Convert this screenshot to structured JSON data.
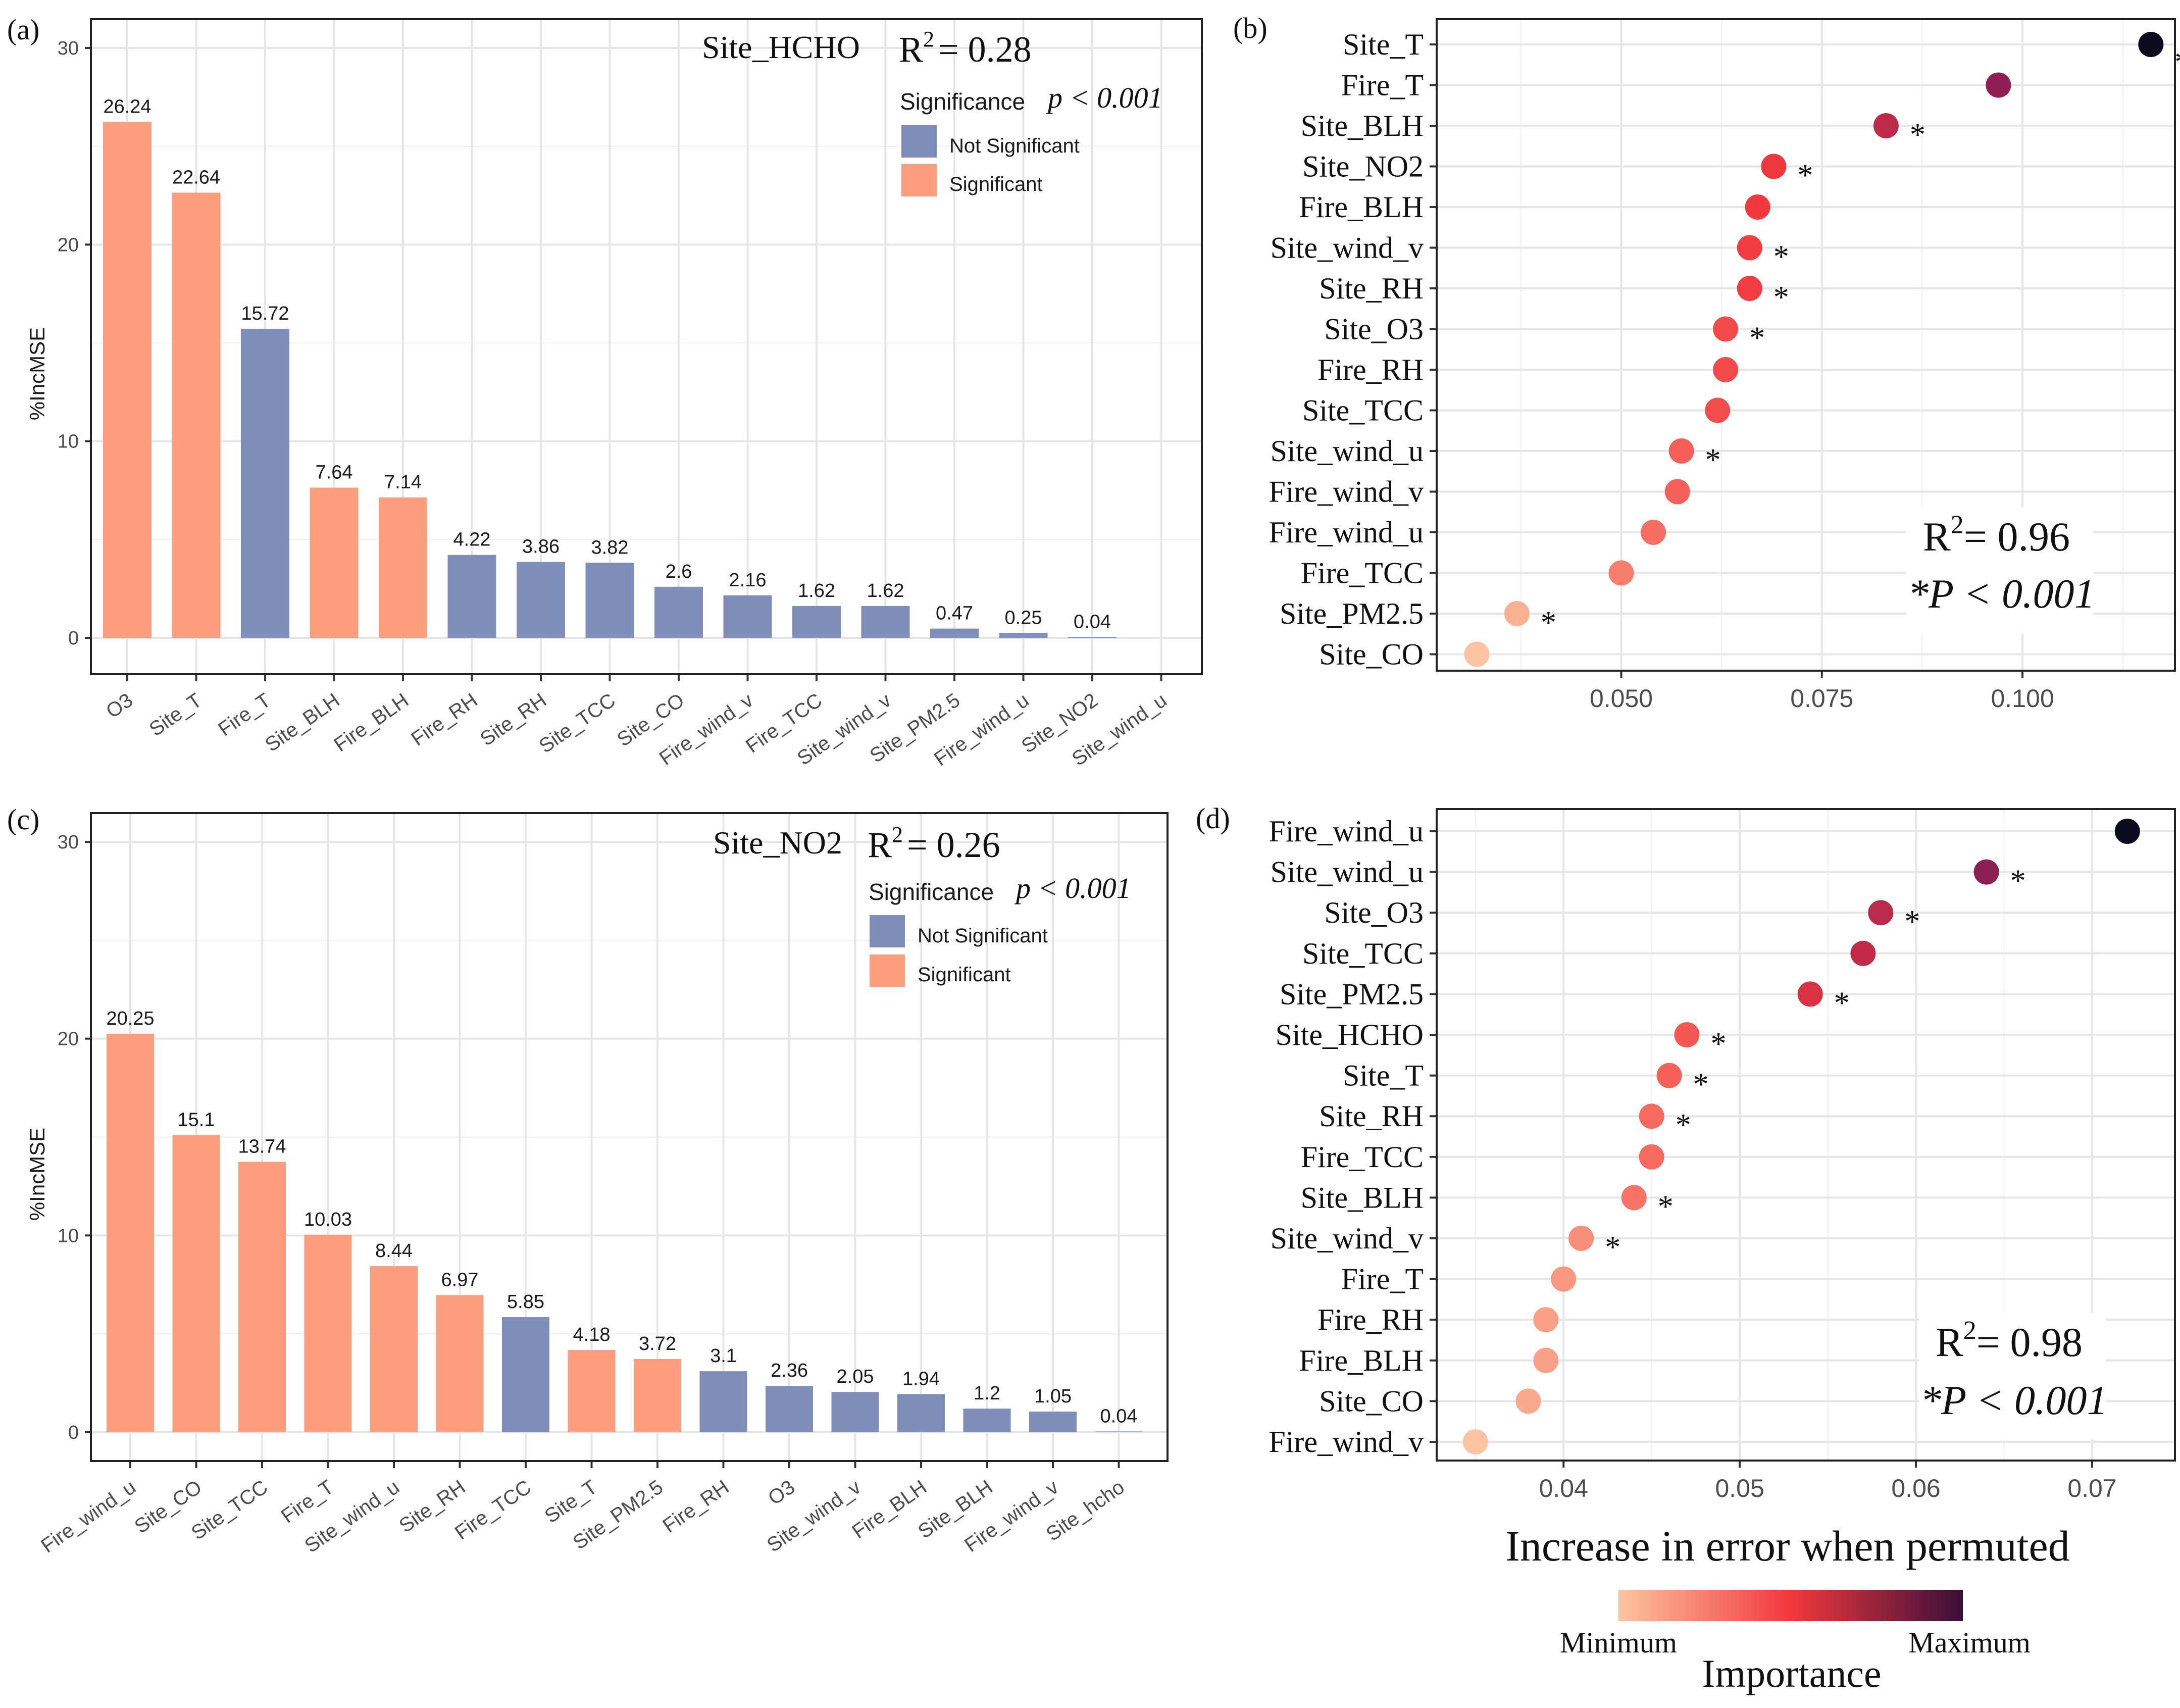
{
  "colors": {
    "significant": "#FC9D7E",
    "not_significant": "#7F8EB8",
    "importance_min": "#FCC4A0",
    "importance_mid": "#F2383C",
    "importance_max": "#0C0A1E"
  },
  "chart_data": [
    {
      "panel": "(a)",
      "type": "bar",
      "site_label": "Site_HCHO",
      "r2_text": "R",
      "r2_value": "= 0.28",
      "ylabel": "%IncMSE",
      "ylim": [
        0,
        30
      ],
      "yticks": [
        0,
        10,
        20,
        30
      ],
      "legend": {
        "title": "Significance",
        "p_text": "p < 0.001",
        "not_significant": "Not Significant",
        "significant": "Significant"
      },
      "categories": [
        "O3",
        "Site_T",
        "Fire_T",
        "Site_BLH",
        "Fire_BLH",
        "Fire_RH",
        "Site_RH",
        "Site_TCC",
        "Site_CO",
        "Fire_wind_v",
        "Fire_TCC",
        "Site_wind_v",
        "Site_PM2.5",
        "Fire_wind_u",
        "Site_NO2",
        "Site_wind_u"
      ],
      "values": [
        26.24,
        22.64,
        15.72,
        7.64,
        7.14,
        4.22,
        3.86,
        3.82,
        2.6,
        2.16,
        1.62,
        1.62,
        0.47,
        0.25,
        0.04,
        null
      ],
      "value_labels": [
        "26.24",
        "22.64",
        "15.72",
        "7.64",
        "7.14",
        "4.22",
        "3.86",
        "3.82",
        "2.6",
        "2.16",
        "1.62",
        "1.62",
        "0.47",
        "0.25",
        "0.04",
        ""
      ],
      "significant": [
        true,
        true,
        false,
        true,
        true,
        false,
        false,
        false,
        false,
        false,
        false,
        false,
        false,
        false,
        false,
        false
      ]
    },
    {
      "panel": "(b)",
      "type": "scatter",
      "xticks": [
        0.05,
        0.075,
        0.1
      ],
      "xtick_labels": [
        "0.050",
        "0.075",
        "0.100"
      ],
      "xlim": [
        0.027,
        0.119
      ],
      "r2_text": "R",
      "r2_value": "= 0.96",
      "p_text": "*P < 0.001",
      "labels": [
        "Site_T",
        "Fire_T",
        "Site_BLH",
        "Site_NO2",
        "Fire_BLH",
        "Site_wind_v",
        "Site_RH",
        "Site_O3",
        "Fire_RH",
        "Site_TCC",
        "Site_wind_u",
        "Fire_wind_v",
        "Fire_wind_u",
        "Fire_TCC",
        "Site_PM2.5",
        "Site_CO"
      ],
      "values": [
        0.116,
        0.097,
        0.083,
        0.069,
        0.067,
        0.066,
        0.066,
        0.063,
        0.063,
        0.062,
        0.0575,
        0.057,
        0.054,
        0.05,
        0.037,
        0.032
      ],
      "significant": [
        true,
        false,
        true,
        true,
        false,
        true,
        true,
        true,
        false,
        false,
        true,
        false,
        false,
        false,
        true,
        false
      ]
    },
    {
      "panel": "(c)",
      "type": "bar",
      "site_label": "Site_NO2",
      "r2_text": "R",
      "r2_value": "= 0.26",
      "ylabel": "%IncMSE",
      "ylim": [
        0,
        30
      ],
      "yticks": [
        0,
        10,
        20,
        30
      ],
      "legend": {
        "title": "Significance",
        "p_text": "p < 0.001",
        "not_significant": "Not Significant",
        "significant": "Significant"
      },
      "categories": [
        "Fire_wind_u",
        "Site_CO",
        "Site_TCC",
        "Fire_T",
        "Site_wind_u",
        "Site_RH",
        "Fire_TCC",
        "Site_T",
        "Site_PM2.5",
        "Fire_RH",
        "O3",
        "Site_wind_v",
        "Fire_BLH",
        "Site_BLH",
        "Fire_wind_v",
        "Site_hcho"
      ],
      "values": [
        20.25,
        15.1,
        13.74,
        10.03,
        8.44,
        6.97,
        5.85,
        4.18,
        3.72,
        3.1,
        2.36,
        2.05,
        1.94,
        1.2,
        1.05,
        0.04
      ],
      "value_labels": [
        "20.25",
        "15.1",
        "13.74",
        "10.03",
        "8.44",
        "6.97",
        "5.85",
        "4.18",
        "3.72",
        "3.1",
        "2.36",
        "2.05",
        "1.94",
        "1.2",
        "1.05",
        "0.04"
      ],
      "significant": [
        true,
        true,
        true,
        true,
        true,
        true,
        false,
        true,
        true,
        false,
        false,
        false,
        false,
        false,
        false,
        false
      ]
    },
    {
      "panel": "(d)",
      "type": "scatter",
      "xticks": [
        0.04,
        0.05,
        0.06,
        0.07
      ],
      "xtick_labels": [
        "0.04",
        "0.05",
        "0.06",
        "0.07"
      ],
      "xlim": [
        0.0328,
        0.0747
      ],
      "xlabel": "Increase in error when permuted",
      "r2_text": "R",
      "r2_value": "= 0.98",
      "p_text": "*P < 0.001",
      "labels": [
        "Fire_wind_u",
        "Site_wind_u",
        "Site_O3",
        "Site_TCC",
        "Site_PM2.5",
        "Site_HCHO",
        "Site_T",
        "Site_RH",
        "Fire_TCC",
        "Site_BLH",
        "Site_wind_v",
        "Fire_T",
        "Fire_RH",
        "Fire_BLH",
        "Site_CO",
        "Fire_wind_v"
      ],
      "values": [
        0.072,
        0.064,
        0.058,
        0.057,
        0.054,
        0.047,
        0.046,
        0.045,
        0.045,
        0.044,
        0.041,
        0.04,
        0.039,
        0.039,
        0.038,
        0.035
      ],
      "significant": [
        false,
        true,
        true,
        false,
        true,
        true,
        true,
        true,
        false,
        true,
        true,
        false,
        false,
        false,
        false,
        false
      ]
    }
  ],
  "importance_legend": {
    "min_label": "Minimum",
    "max_label": "Maximum",
    "title": "Importance"
  }
}
